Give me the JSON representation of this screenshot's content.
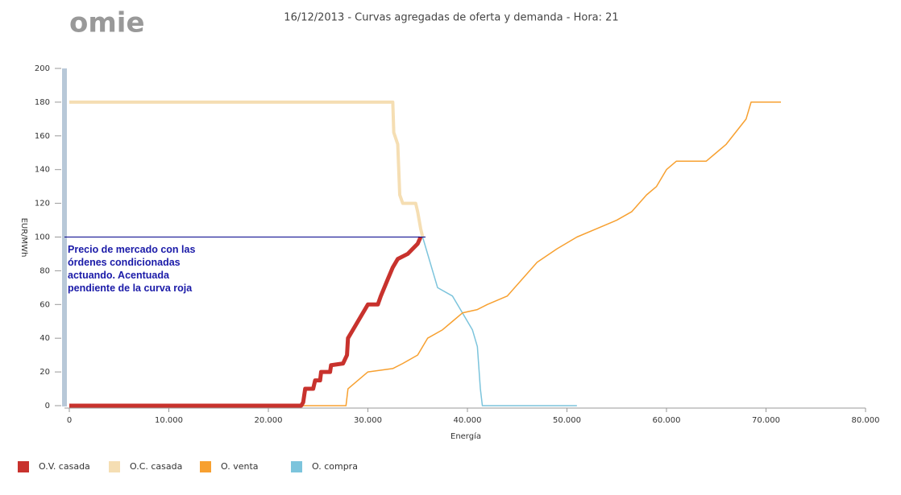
{
  "logo": "omie",
  "chart_data": {
    "type": "line",
    "title": "16/12/2013 - Curvas agregadas de oferta y demanda - Hora: 21",
    "x_label": "Energía",
    "y_label": "EUR/MWh",
    "xlim": [
      0,
      80000
    ],
    "ylim": [
      0,
      200
    ],
    "xticks": [
      0,
      {
        "value": 10000,
        "label": "10.000"
      },
      {
        "value": 20000,
        "label": "20.000"
      },
      {
        "value": 30000,
        "label": "30.000"
      },
      {
        "value": 40000,
        "label": "40.000"
      },
      {
        "value": 50000,
        "label": "50.000"
      },
      {
        "value": 60000,
        "label": "60.000"
      },
      {
        "value": 70000,
        "label": "70.000"
      },
      {
        "value": 80000,
        "label": "80.000"
      }
    ],
    "yticks": [
      0,
      20,
      40,
      60,
      80,
      100,
      120,
      140,
      160,
      180,
      200
    ],
    "series": [
      {
        "name": "O.V. casada",
        "color": "#c8322d",
        "width": 5,
        "x": [
          0,
          23300,
          23500,
          23700,
          24500,
          24700,
          25200,
          25300,
          26200,
          26300,
          27500,
          27900,
          28000,
          28500,
          29000,
          29500,
          30000,
          31000,
          31300,
          32000,
          32500,
          33000,
          34000,
          34500,
          35000,
          35300
        ],
        "values": [
          0,
          0,
          2,
          10,
          10,
          15,
          15,
          20,
          20,
          24,
          25,
          30,
          40,
          45,
          50,
          55,
          60,
          60,
          65,
          75,
          82,
          87,
          90,
          93,
          96,
          100
        ]
      },
      {
        "name": "O.C. casada",
        "color": "#f5deb3",
        "width": 4,
        "x": [
          0,
          32500,
          32600,
          33000,
          33200,
          33500,
          34800,
          35000,
          35300,
          35500
        ],
        "values": [
          180,
          180,
          162,
          155,
          125,
          120,
          120,
          115,
          105,
          100
        ]
      },
      {
        "name": "O. venta",
        "color": "#f7a030",
        "width": 1.5,
        "x": [
          0,
          27800,
          28000,
          30000,
          32500,
          33500,
          35000,
          36000,
          37500,
          38500,
          39500,
          41000,
          42000,
          44000,
          45500,
          47000,
          49000,
          51000,
          53000,
          55000,
          56500,
          58000,
          59000,
          60000,
          61000,
          64000,
          65000,
          66000,
          68000,
          68500,
          71500
        ],
        "values": [
          0,
          0,
          10,
          20,
          22,
          25,
          30,
          40,
          45,
          50,
          55,
          57,
          60,
          65,
          75,
          85,
          93,
          100,
          105,
          110,
          115,
          125,
          130,
          140,
          145,
          145,
          150,
          155,
          170,
          180,
          180
        ]
      },
      {
        "name": "O. compra",
        "color": "#7cc4dc",
        "width": 1.5,
        "x": [
          0,
          32500,
          32600,
          33000,
          33200,
          33500,
          34800,
          35000,
          35500,
          36500,
          37000,
          38500,
          39500,
          40500,
          41000,
          41300,
          41500,
          51000
        ],
        "values": [
          180,
          180,
          162,
          155,
          125,
          120,
          120,
          115,
          100,
          80,
          70,
          65,
          55,
          45,
          35,
          10,
          0,
          0
        ]
      }
    ],
    "annotation": {
      "lines": [
        "Precio de mercado con las",
        "órdenes condicionadas",
        "actuando. Acentuada",
        "pendiente de la curva roja"
      ],
      "y": 100
    }
  }
}
